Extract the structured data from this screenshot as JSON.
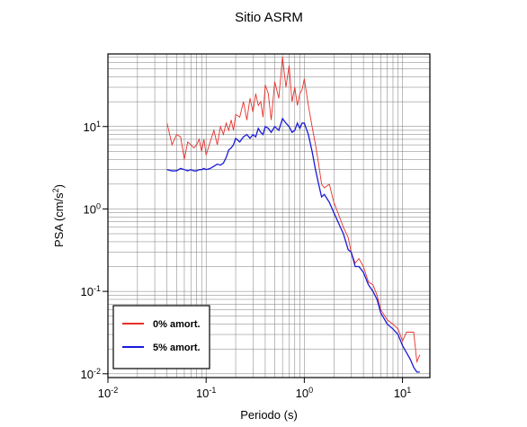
{
  "chart_data": {
    "type": "line",
    "title": "Sitio ASRM",
    "x_label": "Periodo (s)",
    "y_label": {
      "text": "PSA (cm/s",
      "sup": "2",
      "tail": ")"
    },
    "log_x": true,
    "log_y": true,
    "grid": true,
    "legend": "lower left",
    "xlim": [
      0.01,
      19
    ],
    "ylim": [
      0.009,
      76
    ],
    "xticks": [
      {
        "value": 0.01,
        "label": "10",
        "exp": "-2"
      },
      {
        "value": 0.1,
        "label": "10",
        "exp": "-1"
      },
      {
        "value": 1,
        "label": "10",
        "exp": "0"
      },
      {
        "value": 10,
        "label": "10",
        "exp": "1"
      }
    ],
    "yticks": [
      {
        "value": 0.01,
        "label": "10",
        "exp": "-2"
      },
      {
        "value": 0.1,
        "label": "10",
        "exp": "-1"
      },
      {
        "value": 1,
        "label": "10",
        "exp": "0"
      },
      {
        "value": 10,
        "label": "10",
        "exp": "1"
      }
    ],
    "xminorticks": [
      0.02,
      0.03,
      0.04,
      0.05,
      0.06,
      0.07,
      0.08,
      0.09,
      0.2,
      0.3,
      0.4,
      0.5,
      0.6,
      0.7,
      0.8,
      0.9,
      2,
      3,
      4,
      5,
      6,
      7,
      8,
      9
    ],
    "yminorticks": [
      0.02,
      0.03,
      0.04,
      0.05,
      0.06,
      0.07,
      0.08,
      0.09,
      0.2,
      0.3,
      0.4,
      0.5,
      0.6,
      0.7,
      0.8,
      0.9,
      2,
      3,
      4,
      5,
      6,
      7,
      8,
      9,
      20,
      30,
      40,
      50,
      60,
      70
    ],
    "x": [
      0.04,
      0.045,
      0.05,
      0.055,
      0.06,
      0.065,
      0.07,
      0.075,
      0.08,
      0.085,
      0.09,
      0.095,
      0.1,
      0.11,
      0.12,
      0.13,
      0.14,
      0.15,
      0.16,
      0.17,
      0.18,
      0.19,
      0.2,
      0.22,
      0.24,
      0.26,
      0.28,
      0.3,
      0.32,
      0.34,
      0.36,
      0.38,
      0.4,
      0.43,
      0.46,
      0.5,
      0.55,
      0.6,
      0.65,
      0.7,
      0.75,
      0.8,
      0.85,
      0.9,
      0.95,
      1.0,
      1.1,
      1.2,
      1.3,
      1.4,
      1.5,
      1.6,
      1.8,
      2.0,
      2.2,
      2.5,
      2.8,
      3.0,
      3.3,
      3.6,
      4.0,
      4.5,
      5,
      5.5,
      6,
      7,
      8,
      9,
      10,
      11,
      12,
      13,
      14,
      15
    ],
    "series": [
      {
        "name": "0% amort.",
        "color": "#e8302a",
        "values": [
          11,
          6,
          8,
          7.5,
          4,
          6.5,
          6,
          5.5,
          6,
          7,
          5,
          7,
          4.5,
          6.5,
          9,
          6,
          10,
          8,
          11,
          9,
          12,
          9,
          14,
          13,
          20,
          12,
          22,
          15,
          25,
          18,
          20,
          13,
          32,
          25,
          12,
          35,
          22,
          70,
          30,
          55,
          20,
          30,
          18,
          25,
          28,
          38,
          18,
          10,
          6,
          3.5,
          2,
          1.8,
          2.0,
          1.2,
          0.9,
          0.6,
          0.45,
          0.3,
          0.22,
          0.25,
          0.2,
          0.13,
          0.12,
          0.09,
          0.06,
          0.045,
          0.04,
          0.035,
          0.025,
          0.032,
          0.032,
          0.032,
          0.014,
          0.017
        ]
      },
      {
        "name": "5% amort.",
        "color": "#1a1ad8",
        "values": [
          3,
          2.9,
          2.9,
          3.1,
          3.0,
          2.9,
          3.0,
          2.9,
          2.9,
          3.0,
          3.0,
          3.1,
          3.0,
          3.1,
          3.3,
          3.5,
          3.4,
          3.6,
          4.2,
          5.2,
          5.5,
          6.0,
          7.2,
          6.5,
          7.5,
          8.0,
          7.2,
          8.0,
          7.5,
          9.5,
          8.5,
          8.0,
          10,
          9.5,
          8.5,
          10,
          9,
          12.5,
          11,
          10,
          8.5,
          9,
          11,
          9.5,
          11,
          11,
          8,
          5,
          3,
          2,
          1.4,
          1.5,
          1.2,
          0.9,
          0.7,
          0.5,
          0.32,
          0.3,
          0.2,
          0.2,
          0.17,
          0.12,
          0.1,
          0.08,
          0.055,
          0.04,
          0.035,
          0.03,
          0.022,
          0.018,
          0.015,
          0.012,
          0.0105,
          0.0105
        ]
      }
    ]
  }
}
